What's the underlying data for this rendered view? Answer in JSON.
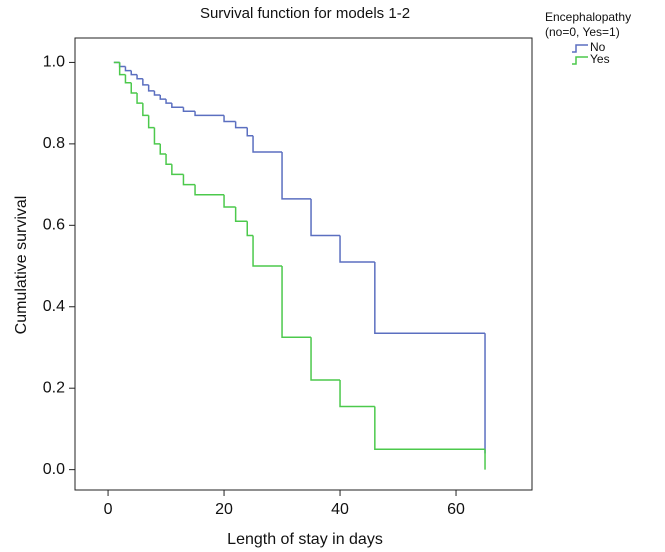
{
  "chart_data": {
    "type": "step",
    "title": "Survival function for models 1-2",
    "x_label": "Length of stay in days",
    "y_label": "Cumulative survival",
    "legend_title": [
      "Encephalopathy",
      "(no=0, Yes=1)"
    ],
    "legend_position": "right",
    "x": [
      1,
      2,
      3,
      4,
      5,
      6,
      7,
      8,
      9,
      10,
      11,
      13,
      15,
      20,
      22,
      24,
      25,
      30,
      35,
      40,
      46,
      65
    ],
    "series": [
      {
        "name": "No",
        "color": "#5b6fc0",
        "values": [
          1.0,
          0.99,
          0.98,
          0.97,
          0.96,
          0.945,
          0.93,
          0.92,
          0.91,
          0.9,
          0.89,
          0.88,
          0.87,
          0.855,
          0.84,
          0.82,
          0.78,
          0.665,
          0.575,
          0.51,
          0.335,
          0.04
        ]
      },
      {
        "name": "Yes",
        "color": "#4cc94c",
        "values": [
          1.0,
          0.97,
          0.95,
          0.925,
          0.9,
          0.87,
          0.84,
          0.8,
          0.775,
          0.75,
          0.725,
          0.7,
          0.675,
          0.645,
          0.61,
          0.575,
          0.5,
          0.325,
          0.22,
          0.155,
          0.05,
          0.0
        ]
      }
    ],
    "xlim": [
      -5.7,
      73.1
    ],
    "ylim": [
      -0.05,
      1.06
    ],
    "xticks": [
      0,
      20,
      40,
      60
    ],
    "yticks": [
      {
        "value": 0,
        "label": "0.0"
      },
      {
        "value": 0.2,
        "label": "0.2"
      },
      {
        "value": 0.4,
        "label": "0.4"
      },
      {
        "value": 0.6,
        "label": "0.6"
      },
      {
        "value": 0.8,
        "label": "0.8"
      },
      {
        "value": 1,
        "label": "1.0"
      }
    ],
    "grid": false
  }
}
